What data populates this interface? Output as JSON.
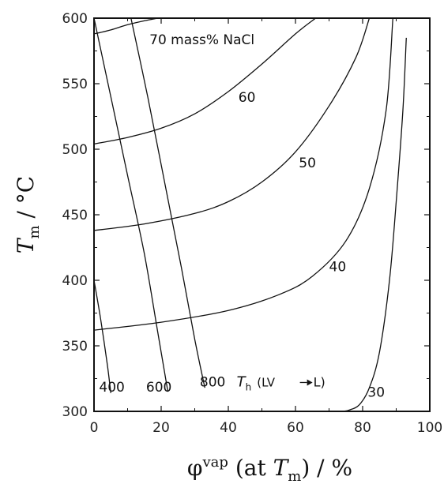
{
  "chart_data": {
    "type": "line",
    "xlabel": {
      "prefix": "φ",
      "sup": "vap",
      "middle": " (at ",
      "italic": "T",
      "sub": "m",
      "suffix": ") / %"
    },
    "ylabel": {
      "italic": "T",
      "sub": "m",
      "suffix": "  /  °C"
    },
    "xlim": [
      0,
      100
    ],
    "ylim": [
      300,
      600
    ],
    "xticks": [
      0,
      20,
      40,
      60,
      80,
      100
    ],
    "yticks": [
      300,
      350,
      400,
      450,
      500,
      550,
      600
    ],
    "grid": false,
    "series": [
      {
        "name": "70 mass% NaCl",
        "group": "salinity",
        "points": [
          [
            0,
            588
          ],
          [
            5,
            591
          ],
          [
            10,
            595
          ],
          [
            15,
            598
          ],
          [
            19,
            600
          ]
        ]
      },
      {
        "name": "60",
        "group": "salinity",
        "points": [
          [
            0,
            504
          ],
          [
            10,
            509
          ],
          [
            20,
            516
          ],
          [
            30,
            527
          ],
          [
            40,
            544
          ],
          [
            50,
            565
          ],
          [
            60,
            588
          ],
          [
            66,
            600
          ]
        ]
      },
      {
        "name": "50",
        "group": "salinity",
        "points": [
          [
            0,
            438
          ],
          [
            15,
            443
          ],
          [
            30,
            451
          ],
          [
            40,
            460
          ],
          [
            50,
            475
          ],
          [
            60,
            498
          ],
          [
            70,
            533
          ],
          [
            78,
            570
          ],
          [
            82,
            600
          ]
        ]
      },
      {
        "name": "40",
        "group": "salinity",
        "points": [
          [
            0,
            362
          ],
          [
            20,
            368
          ],
          [
            40,
            377
          ],
          [
            55,
            389
          ],
          [
            65,
            403
          ],
          [
            75,
            430
          ],
          [
            82,
            470
          ],
          [
            87,
            530
          ],
          [
            89,
            600
          ]
        ]
      },
      {
        "name": "30",
        "group": "salinity",
        "points": [
          [
            74,
            300
          ],
          [
            76,
            301
          ],
          [
            79,
            305
          ],
          [
            82,
            318
          ],
          [
            85,
            345
          ],
          [
            88,
            400
          ],
          [
            90,
            460
          ],
          [
            92,
            530
          ],
          [
            93,
            585
          ]
        ]
      },
      {
        "name": "400",
        "group": "Th",
        "points": [
          [
            0,
            400
          ],
          [
            2,
            370
          ],
          [
            4,
            335
          ],
          [
            5,
            314
          ]
        ]
      },
      {
        "name": "600",
        "group": "Th",
        "points": [
          [
            0,
            600
          ],
          [
            5,
            540
          ],
          [
            10,
            480
          ],
          [
            15,
            420
          ],
          [
            19,
            360
          ],
          [
            22,
            315
          ]
        ]
      },
      {
        "name": "800",
        "group": "Th",
        "points": [
          [
            11,
            600
          ],
          [
            16,
            540
          ],
          [
            21,
            475
          ],
          [
            26,
            410
          ],
          [
            30,
            355
          ],
          [
            33,
            318
          ]
        ]
      }
    ],
    "annotations": {
      "salinity_title": "70 mass% NaCl",
      "th_series": "T",
      "th_sub": "h",
      "th_phase_left": "(LV",
      "th_phase_right": "L)"
    }
  }
}
